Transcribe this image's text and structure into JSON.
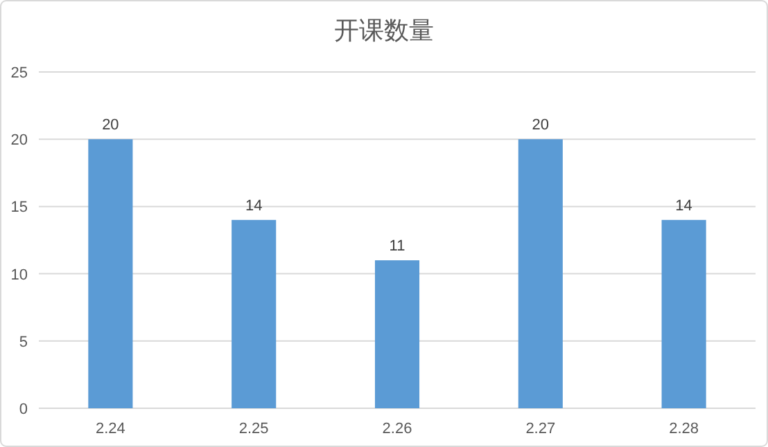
{
  "chart_data": {
    "type": "bar",
    "title": "开课数量",
    "categories": [
      "2.24",
      "2.25",
      "2.26",
      "2.27",
      "2.28"
    ],
    "values": [
      20,
      14,
      11,
      20,
      14
    ],
    "color": "#5b9bd5",
    "ylim": [
      0,
      25
    ],
    "yticks": [
      0,
      5,
      10,
      15,
      20,
      25
    ],
    "grid": "y",
    "data_labels": true
  }
}
